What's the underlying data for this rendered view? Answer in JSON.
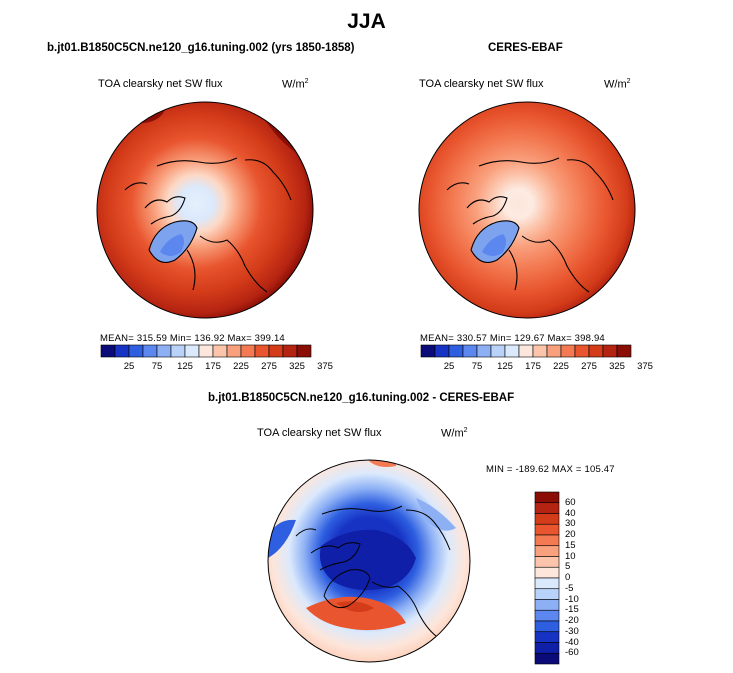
{
  "main_title": "JJA",
  "panels": [
    {
      "title": "b.jt01.B1850C5CN.ne120_g16.tuning.002 (yrs 1850-1858)",
      "map_label": "TOA clearsky net SW flux",
      "units_base": "W/m",
      "units_sup": "2",
      "stats": "MEAN= 315.59  Min= 136.92  Max= 399.14"
    },
    {
      "title": "CERES-EBAF",
      "map_label": "TOA clearsky net SW flux",
      "units_base": "W/m",
      "units_sup": "2",
      "stats": "MEAN= 330.57  Min= 129.67  Max= 398.94"
    },
    {
      "title": "b.jt01.B1850C5CN.ne120_g16.tuning.002 - CERES-EBAF",
      "map_label": "TOA clearsky net SW flux",
      "units_base": "W/m",
      "units_sup": "2",
      "stats": "MIN = -189.62 MAX = 105.47"
    }
  ],
  "chart_data": [
    {
      "type": "heatmap",
      "projection": "north polar stereographic",
      "title": "b.jt01.B1850C5CN.ne120_g16.tuning.002 (yrs 1850-1858)",
      "variable": "TOA clearsky net SW flux",
      "units": "W/m2",
      "mean": 315.59,
      "min": 136.92,
      "max": 399.14,
      "colorbar_ticks": [
        "25",
        "75",
        "125",
        "175",
        "225",
        "275",
        "325",
        "375"
      ],
      "colorbar_colors": [
        "#0a0a78",
        "#1733c4",
        "#2e5fe0",
        "#5c87ee",
        "#8db0f5",
        "#b8d2fa",
        "#dbe9fc",
        "#fde6db",
        "#fcc4ab",
        "#f9a07d",
        "#f37a52",
        "#e8552e",
        "#d33b19",
        "#b52412",
        "#8a0e06"
      ]
    },
    {
      "type": "heatmap",
      "projection": "north polar stereographic",
      "title": "CERES-EBAF",
      "variable": "TOA clearsky net SW flux",
      "units": "W/m2",
      "mean": 330.57,
      "min": 129.67,
      "max": 398.94,
      "colorbar_ticks": [
        "25",
        "75",
        "125",
        "175",
        "225",
        "275",
        "325",
        "375"
      ],
      "colorbar_colors": [
        "#0a0a78",
        "#1733c4",
        "#2e5fe0",
        "#5c87ee",
        "#8db0f5",
        "#b8d2fa",
        "#dbe9fc",
        "#fde6db",
        "#fcc4ab",
        "#f9a07d",
        "#f37a52",
        "#e8552e",
        "#d33b19",
        "#b52412",
        "#8a0e06"
      ]
    },
    {
      "type": "heatmap",
      "projection": "north polar stereographic",
      "title": "b.jt01.B1850C5CN.ne120_g16.tuning.002 - CERES-EBAF",
      "variable": "TOA clearsky net SW flux",
      "units": "W/m2",
      "min": -189.62,
      "max": 105.47,
      "colorbar_ticks": [
        "60",
        "40",
        "30",
        "20",
        "15",
        "10",
        "5",
        "0",
        "-5",
        "-10",
        "-15",
        "-20",
        "-30",
        "-40",
        "-60"
      ],
      "colorbar_colors": [
        "#8a0e06",
        "#b52412",
        "#d33b19",
        "#e8552e",
        "#f37a52",
        "#f9a07d",
        "#fcc4ab",
        "#fde6db",
        "#dbe9fc",
        "#b8d2fa",
        "#8db0f5",
        "#5c87ee",
        "#2e5fe0",
        "#1733c4",
        "#0f1fa8",
        "#0a0a78"
      ]
    }
  ]
}
